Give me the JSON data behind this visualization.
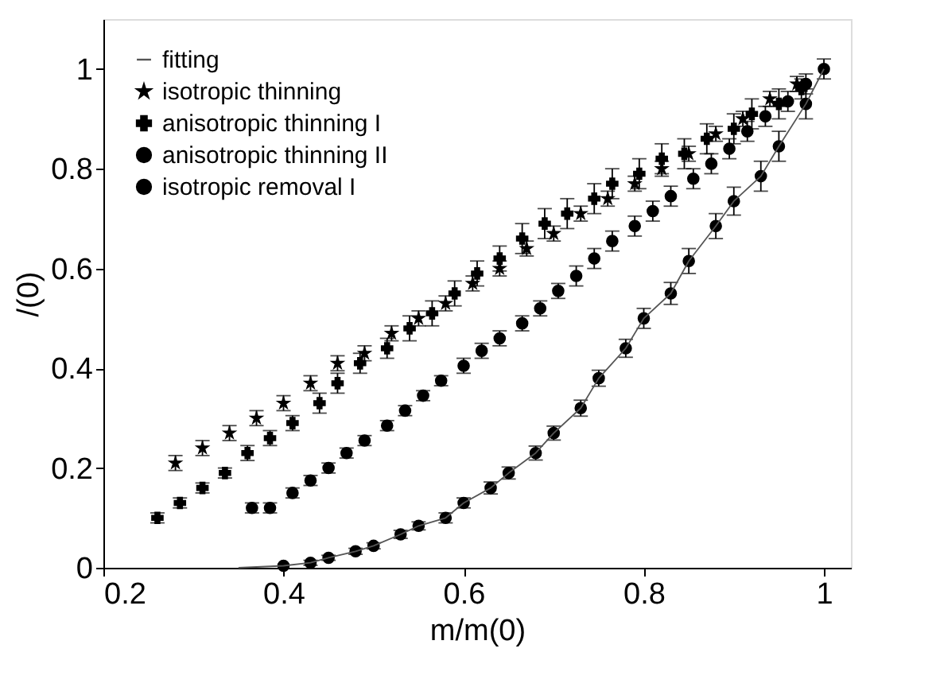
{
  "chart_data": {
    "type": "scatter",
    "xlabel": "m/m(0)",
    "ylabel": "/(0)",
    "xlim": [
      0.2,
      1.03
    ],
    "ylim": [
      0,
      1.1
    ],
    "xticks": [
      0.2,
      0.4,
      0.6,
      0.8,
      1
    ],
    "yticks": [
      0,
      0.2,
      0.4,
      0.6,
      0.8,
      1
    ],
    "grid": false,
    "legend": "top left",
    "series": [
      {
        "name": "fitting",
        "type": "line",
        "color": "#555555",
        "marker": "none",
        "line_style": "solid",
        "x": [
          0.35,
          0.4,
          0.43,
          0.45,
          0.48,
          0.5,
          0.53,
          0.55,
          0.58,
          0.6,
          0.63,
          0.65,
          0.68,
          0.7,
          0.73,
          0.75,
          0.78,
          0.8,
          0.83,
          0.85,
          0.88,
          0.9,
          0.93,
          0.95,
          0.98,
          1.0
        ],
        "values": [
          0,
          0.004,
          0.01,
          0.02,
          0.033,
          0.044,
          0.067,
          0.084,
          0.1,
          0.13,
          0.16,
          0.19,
          0.23,
          0.27,
          0.32,
          0.38,
          0.44,
          0.5,
          0.55,
          0.615,
          0.685,
          0.735,
          0.785,
          0.845,
          0.93,
          1.0
        ]
      },
      {
        "name": "isotropic thinning",
        "color": "#000000",
        "marker": "star",
        "x": [
          0.28,
          0.31,
          0.34,
          0.37,
          0.4,
          0.43,
          0.46,
          0.49,
          0.52,
          0.55,
          0.58,
          0.61,
          0.64,
          0.67,
          0.7,
          0.73,
          0.76,
          0.79,
          0.82,
          0.85,
          0.88,
          0.91,
          0.94,
          0.97
        ],
        "values": [
          0.21,
          0.24,
          0.27,
          0.3,
          0.33,
          0.37,
          0.41,
          0.43,
          0.47,
          0.5,
          0.53,
          0.57,
          0.6,
          0.64,
          0.67,
          0.71,
          0.74,
          0.77,
          0.8,
          0.83,
          0.87,
          0.9,
          0.94,
          0.97
        ],
        "errors": [
          0.015,
          0.015,
          0.015,
          0.015,
          0.015,
          0.015,
          0.015,
          0.015,
          0.015,
          0.015,
          0.015,
          0.015,
          0.015,
          0.015,
          0.015,
          0.015,
          0.015,
          0.015,
          0.015,
          0.015,
          0.015,
          0.015,
          0.015,
          0.015
        ]
      },
      {
        "name": "anisotropic thinning I",
        "color": "#000000",
        "marker": "cross",
        "x": [
          0.26,
          0.285,
          0.31,
          0.335,
          0.36,
          0.385,
          0.41,
          0.44,
          0.46,
          0.485,
          0.515,
          0.54,
          0.565,
          0.59,
          0.615,
          0.64,
          0.665,
          0.69,
          0.715,
          0.745,
          0.765,
          0.795,
          0.82,
          0.845,
          0.87,
          0.9,
          0.92,
          0.95,
          0.975
        ],
        "values": [
          0.1,
          0.13,
          0.16,
          0.19,
          0.23,
          0.26,
          0.29,
          0.33,
          0.37,
          0.41,
          0.44,
          0.48,
          0.51,
          0.55,
          0.59,
          0.62,
          0.66,
          0.69,
          0.71,
          0.74,
          0.77,
          0.79,
          0.82,
          0.83,
          0.86,
          0.88,
          0.91,
          0.93,
          0.96
        ],
        "errors": [
          0.01,
          0.01,
          0.01,
          0.01,
          0.015,
          0.015,
          0.015,
          0.02,
          0.02,
          0.02,
          0.02,
          0.025,
          0.025,
          0.025,
          0.025,
          0.025,
          0.03,
          0.03,
          0.03,
          0.03,
          0.03,
          0.03,
          0.03,
          0.03,
          0.03,
          0.03,
          0.03,
          0.03,
          0.02
        ]
      },
      {
        "name": "anisotropic thinning II",
        "color": "#000000",
        "marker": "circle",
        "x": [
          0.365,
          0.385,
          0.41,
          0.43,
          0.45,
          0.47,
          0.49,
          0.515,
          0.535,
          0.555,
          0.575,
          0.6,
          0.62,
          0.64,
          0.665,
          0.685,
          0.705,
          0.725,
          0.745,
          0.765,
          0.79,
          0.81,
          0.83,
          0.855,
          0.875,
          0.895,
          0.915,
          0.935,
          0.96,
          0.98,
          1.0
        ],
        "values": [
          0.12,
          0.12,
          0.15,
          0.175,
          0.2,
          0.23,
          0.255,
          0.285,
          0.315,
          0.345,
          0.375,
          0.405,
          0.435,
          0.46,
          0.49,
          0.52,
          0.555,
          0.585,
          0.62,
          0.655,
          0.685,
          0.715,
          0.745,
          0.78,
          0.81,
          0.84,
          0.875,
          0.905,
          0.935,
          0.97,
          1.0
        ],
        "errors": [
          0.01,
          0.01,
          0.01,
          0.01,
          0.01,
          0.01,
          0.01,
          0.01,
          0.01,
          0.01,
          0.01,
          0.015,
          0.015,
          0.015,
          0.015,
          0.015,
          0.015,
          0.02,
          0.02,
          0.02,
          0.02,
          0.02,
          0.02,
          0.02,
          0.02,
          0.02,
          0.02,
          0.02,
          0.02,
          0.02,
          0.02
        ]
      },
      {
        "name": "isotropic removal I",
        "color": "#000000",
        "marker": "circle",
        "x": [
          0.4,
          0.43,
          0.45,
          0.48,
          0.5,
          0.53,
          0.55,
          0.58,
          0.6,
          0.63,
          0.65,
          0.68,
          0.7,
          0.73,
          0.75,
          0.78,
          0.8,
          0.83,
          0.85,
          0.88,
          0.9,
          0.93,
          0.95,
          0.98
        ],
        "values": [
          0.004,
          0.01,
          0.02,
          0.033,
          0.044,
          0.067,
          0.084,
          0.1,
          0.13,
          0.16,
          0.19,
          0.23,
          0.27,
          0.32,
          0.38,
          0.44,
          0.5,
          0.55,
          0.615,
          0.685,
          0.735,
          0.785,
          0.845,
          0.93
        ],
        "errors": [
          null,
          0.005,
          0.005,
          0.006,
          0.006,
          0.008,
          0.008,
          0.01,
          0.01,
          0.012,
          0.012,
          0.014,
          0.014,
          0.016,
          0.016,
          0.018,
          0.02,
          0.022,
          0.025,
          0.025,
          0.028,
          0.03,
          0.03,
          0.03
        ]
      }
    ]
  }
}
